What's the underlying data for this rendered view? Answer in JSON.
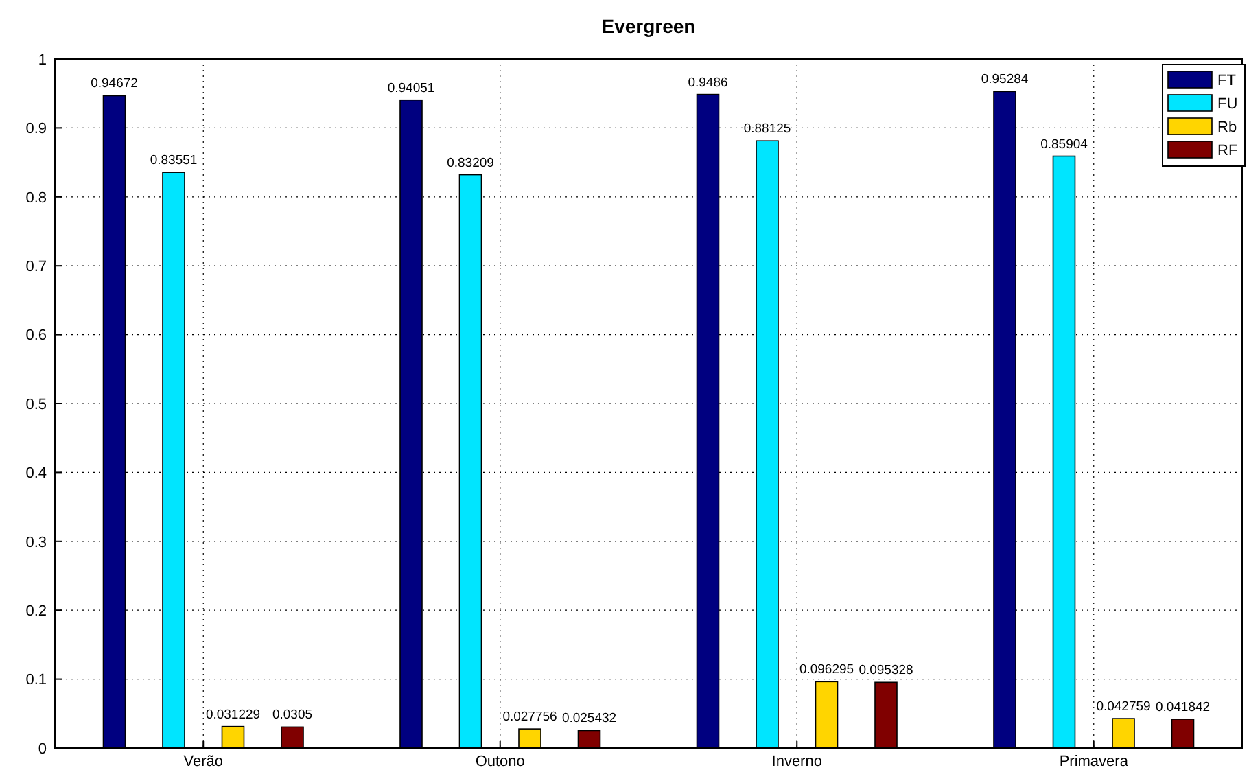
{
  "chart_data": {
    "type": "bar",
    "title": "Evergreen",
    "categories": [
      "Verão",
      "Outono",
      "Inverno",
      "Primavera"
    ],
    "series": [
      {
        "name": "FT",
        "color": "#000080",
        "values": [
          0.94672,
          0.94051,
          0.9486,
          0.95284
        ]
      },
      {
        "name": "FU",
        "color": "#00e5ff",
        "values": [
          0.83551,
          0.83209,
          0.88125,
          0.85904
        ]
      },
      {
        "name": "Rb",
        "color": "#ffd500",
        "values": [
          0.031229,
          0.027756,
          0.096295,
          0.042759
        ]
      },
      {
        "name": "RF",
        "color": "#800000",
        "values": [
          0.0305,
          0.025432,
          0.095328,
          0.041842
        ]
      }
    ],
    "ylim": [
      0,
      1
    ],
    "yticks": [
      0,
      0.1,
      0.2,
      0.3,
      0.4,
      0.5,
      0.6,
      0.7,
      0.8,
      0.9,
      1
    ],
    "grid": true,
    "legend": "top right",
    "data_labels": true
  }
}
